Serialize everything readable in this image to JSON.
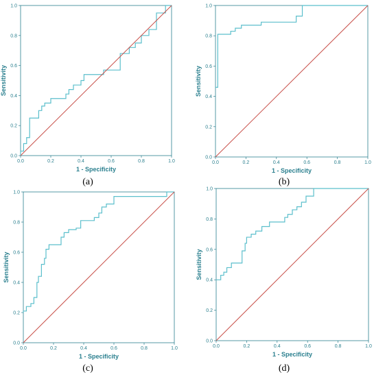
{
  "chart_data": [
    {
      "type": "line",
      "caption": "(a)",
      "xlabel": "1 - Specificity",
      "ylabel": "Sensitivity",
      "xlim": [
        0,
        1
      ],
      "ylim": [
        0,
        1
      ],
      "xticks": [
        "0.0",
        "0.2",
        "0.4",
        "0.6",
        "0.8",
        "1.0"
      ],
      "yticks": [
        "0.0",
        "0.2",
        "0.4",
        "0.6",
        "0.8",
        "1.0"
      ],
      "grid": false,
      "colors": {
        "roc": "#5bbfcc",
        "reference": "#c8504a"
      },
      "series": [
        {
          "role": "roc",
          "x": [
            0,
            0,
            0.02,
            0.02,
            0.04,
            0.04,
            0.06,
            0.06,
            0.12,
            0.12,
            0.14,
            0.14,
            0.16,
            0.16,
            0.2,
            0.2,
            0.3,
            0.3,
            0.32,
            0.32,
            0.35,
            0.35,
            0.4,
            0.4,
            0.42,
            0.42,
            0.55,
            0.55,
            0.66,
            0.66,
            0.72,
            0.72,
            0.76,
            0.76,
            0.8,
            0.8,
            0.85,
            0.85,
            0.9,
            0.9,
            0.96,
            0.96,
            1.0
          ],
          "y": [
            0,
            0.03,
            0.03,
            0.08,
            0.08,
            0.12,
            0.12,
            0.25,
            0.25,
            0.3,
            0.3,
            0.33,
            0.33,
            0.35,
            0.35,
            0.38,
            0.38,
            0.41,
            0.41,
            0.44,
            0.44,
            0.47,
            0.47,
            0.5,
            0.5,
            0.54,
            0.54,
            0.57,
            0.57,
            0.68,
            0.68,
            0.72,
            0.72,
            0.75,
            0.75,
            0.8,
            0.8,
            0.84,
            0.84,
            0.95,
            0.95,
            1.0,
            1.0
          ]
        },
        {
          "role": "reference",
          "x": [
            0,
            1
          ],
          "y": [
            0,
            1
          ]
        }
      ]
    },
    {
      "type": "line",
      "caption": "(b)",
      "xlabel": "1 - Specificity",
      "ylabel": "Sensitivity",
      "xlim": [
        0,
        1
      ],
      "ylim": [
        0,
        1
      ],
      "xticks": [
        "0.0",
        "0.2",
        "0.4",
        "0.6",
        "0.8",
        "1.0"
      ],
      "yticks": [
        "0.0",
        "0.2",
        "0.4",
        "0.6",
        "0.8",
        "1.0"
      ],
      "grid": false,
      "colors": {
        "roc": "#5bbfcc",
        "reference": "#c8504a"
      },
      "series": [
        {
          "role": "roc",
          "x": [
            0,
            0.015,
            0.015,
            0.03,
            0.03,
            0.1,
            0.1,
            0.13,
            0.13,
            0.17,
            0.17,
            0.3,
            0.3,
            0.53,
            0.53,
            0.57,
            0.57,
            1.0
          ],
          "y": [
            0.46,
            0.46,
            0.81,
            0.81,
            0.81,
            0.81,
            0.83,
            0.83,
            0.85,
            0.85,
            0.87,
            0.87,
            0.89,
            0.89,
            0.93,
            0.93,
            1.0,
            1.0
          ]
        },
        {
          "role": "reference",
          "x": [
            0,
            1
          ],
          "y": [
            0,
            1
          ]
        }
      ]
    },
    {
      "type": "line",
      "caption": "(c)",
      "xlabel": "1 - Specificity",
      "ylabel": "Sensitivity",
      "xlim": [
        0,
        1
      ],
      "ylim": [
        0,
        1
      ],
      "xticks": [
        "0.0",
        "0.2",
        "0.4",
        "0.6",
        "0.8",
        "1.0"
      ],
      "yticks": [
        "0.0",
        "0.2",
        "0.4",
        "0.6",
        "0.8",
        "1.0"
      ],
      "grid": false,
      "colors": {
        "roc": "#5bbfcc",
        "reference": "#c8504a"
      },
      "series": [
        {
          "role": "roc",
          "x": [
            0,
            0,
            0.02,
            0.02,
            0.05,
            0.05,
            0.07,
            0.07,
            0.09,
            0.09,
            0.1,
            0.1,
            0.12,
            0.12,
            0.14,
            0.14,
            0.15,
            0.15,
            0.17,
            0.17,
            0.25,
            0.25,
            0.27,
            0.27,
            0.3,
            0.3,
            0.35,
            0.35,
            0.38,
            0.38,
            0.47,
            0.47,
            0.5,
            0.5,
            0.52,
            0.52,
            0.55,
            0.55,
            0.6,
            0.6,
            0.95,
            0.95,
            1.0
          ],
          "y": [
            0.2,
            0.21,
            0.21,
            0.24,
            0.24,
            0.26,
            0.26,
            0.3,
            0.3,
            0.4,
            0.4,
            0.44,
            0.44,
            0.52,
            0.52,
            0.56,
            0.56,
            0.62,
            0.62,
            0.65,
            0.65,
            0.7,
            0.7,
            0.73,
            0.73,
            0.75,
            0.75,
            0.76,
            0.76,
            0.81,
            0.81,
            0.83,
            0.83,
            0.86,
            0.86,
            0.9,
            0.9,
            0.92,
            0.92,
            0.97,
            0.97,
            1.0,
            1.0
          ]
        },
        {
          "role": "reference",
          "x": [
            0,
            1
          ],
          "y": [
            0,
            1
          ]
        }
      ]
    },
    {
      "type": "line",
      "caption": "(d)",
      "xlabel": "1 - Specificity",
      "ylabel": "Sensitivity",
      "xlim": [
        0,
        1
      ],
      "ylim": [
        0,
        1
      ],
      "xticks": [
        "0.0",
        "0.2",
        "0.4",
        "0.6",
        "0.8",
        "1.0"
      ],
      "yticks": [
        "0.0",
        "0.2",
        "0.4",
        "0.6",
        "0.8",
        "1.0"
      ],
      "grid": false,
      "colors": {
        "roc": "#5bbfcc",
        "reference": "#c8504a"
      },
      "series": [
        {
          "role": "roc",
          "x": [
            0,
            0.03,
            0.03,
            0.05,
            0.05,
            0.07,
            0.07,
            0.1,
            0.1,
            0.17,
            0.17,
            0.19,
            0.19,
            0.2,
            0.2,
            0.23,
            0.23,
            0.26,
            0.26,
            0.3,
            0.3,
            0.35,
            0.35,
            0.45,
            0.45,
            0.47,
            0.47,
            0.5,
            0.5,
            0.53,
            0.53,
            0.56,
            0.56,
            0.59,
            0.59,
            0.64,
            0.64,
            1.0
          ],
          "y": [
            0.4,
            0.4,
            0.43,
            0.43,
            0.45,
            0.45,
            0.48,
            0.48,
            0.51,
            0.51,
            0.59,
            0.59,
            0.64,
            0.64,
            0.68,
            0.68,
            0.7,
            0.7,
            0.72,
            0.72,
            0.75,
            0.75,
            0.78,
            0.78,
            0.81,
            0.81,
            0.83,
            0.83,
            0.86,
            0.86,
            0.88,
            0.88,
            0.91,
            0.91,
            0.95,
            0.95,
            1.0,
            1.0
          ]
        },
        {
          "role": "reference",
          "x": [
            0,
            1
          ],
          "y": [
            0,
            1
          ]
        }
      ]
    }
  ]
}
